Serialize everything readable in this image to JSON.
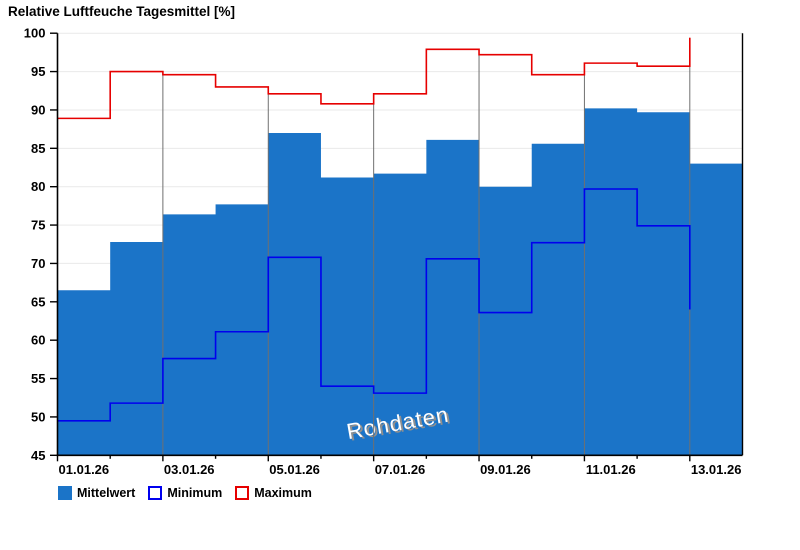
{
  "title": "Relative Luftfeuche Tagesmittel [%]",
  "watermark": {
    "text": "Rohdaten"
  },
  "legend": [
    {
      "label": "Mittelwert",
      "style": "filled",
      "color": "#1B74C8"
    },
    {
      "label": "Minimum",
      "style": "outline",
      "color": "#0000EE"
    },
    {
      "label": "Maximum",
      "style": "outline",
      "color": "#E60000"
    }
  ],
  "chart_data": {
    "type": "area",
    "step": true,
    "title": "Relative Luftfeuche Tagesmittel [%]",
    "xlabel": "",
    "ylabel": "",
    "ylim": [
      45,
      100
    ],
    "ytick_step": 5,
    "y_tick_labels": [
      "45",
      "50",
      "55",
      "60",
      "65",
      "70",
      "75",
      "80",
      "85",
      "90",
      "95",
      "100"
    ],
    "x_tick_labels": [
      "01.01.26",
      "03.01.26",
      "05.01.26",
      "07.01.26",
      "09.01.26",
      "11.01.26",
      "13.01.26"
    ],
    "categories": [
      "01.01.26",
      "02.01.26",
      "03.01.26",
      "04.01.26",
      "05.01.26",
      "06.01.26",
      "07.01.26",
      "08.01.26",
      "09.01.26",
      "10.01.26",
      "11.01.26",
      "12.01.26",
      "13.01.26"
    ],
    "grid": {
      "horizontal": true,
      "vertical_every_2_days": true
    },
    "legend_position": "bottom-left",
    "series": [
      {
        "name": "Mittelwert",
        "render": "step-area",
        "color": "#1B74C8",
        "values": [
          66.5,
          72.8,
          76.4,
          77.7,
          87.0,
          81.2,
          81.7,
          86.1,
          80.0,
          85.6,
          90.2,
          89.7,
          83.0
        ]
      },
      {
        "name": "Minimum",
        "render": "step-line",
        "color": "#0000EE",
        "values": [
          49.5,
          51.8,
          57.6,
          61.1,
          70.8,
          54.0,
          53.1,
          70.6,
          63.6,
          72.7,
          79.7,
          74.9,
          64.0
        ]
      },
      {
        "name": "Maximum",
        "render": "step-line",
        "color": "#E60000",
        "values": [
          88.9,
          95.0,
          94.6,
          93.0,
          92.1,
          90.8,
          92.1,
          97.9,
          97.2,
          94.6,
          96.1,
          95.7,
          99.4
        ]
      }
    ]
  }
}
